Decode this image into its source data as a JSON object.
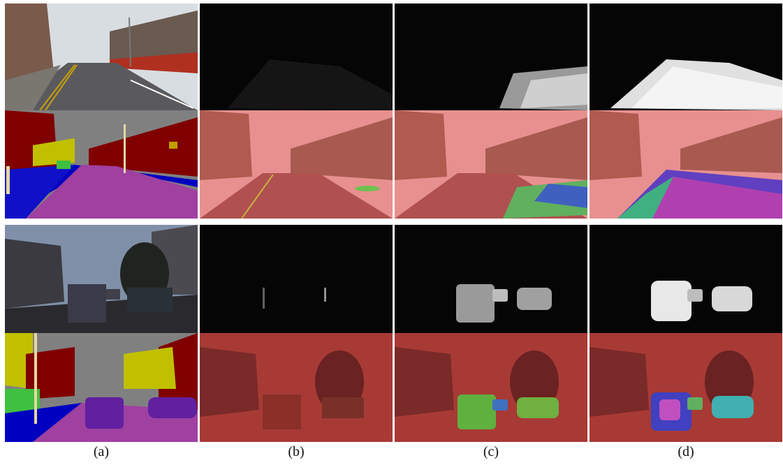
{
  "captions": {
    "a": "(a)",
    "b": "(b)",
    "c": "(c)",
    "d": "(d)"
  },
  "colors": {
    "sky": "#808080",
    "building": "#800000",
    "road": "#800080",
    "sidewalk": "#0000c0",
    "tree": "#c0c000",
    "pole": "#e6d8a0",
    "fence": "#40c040",
    "car": "#400080",
    "overlay_red": "#c03030"
  },
  "description_free": true
}
